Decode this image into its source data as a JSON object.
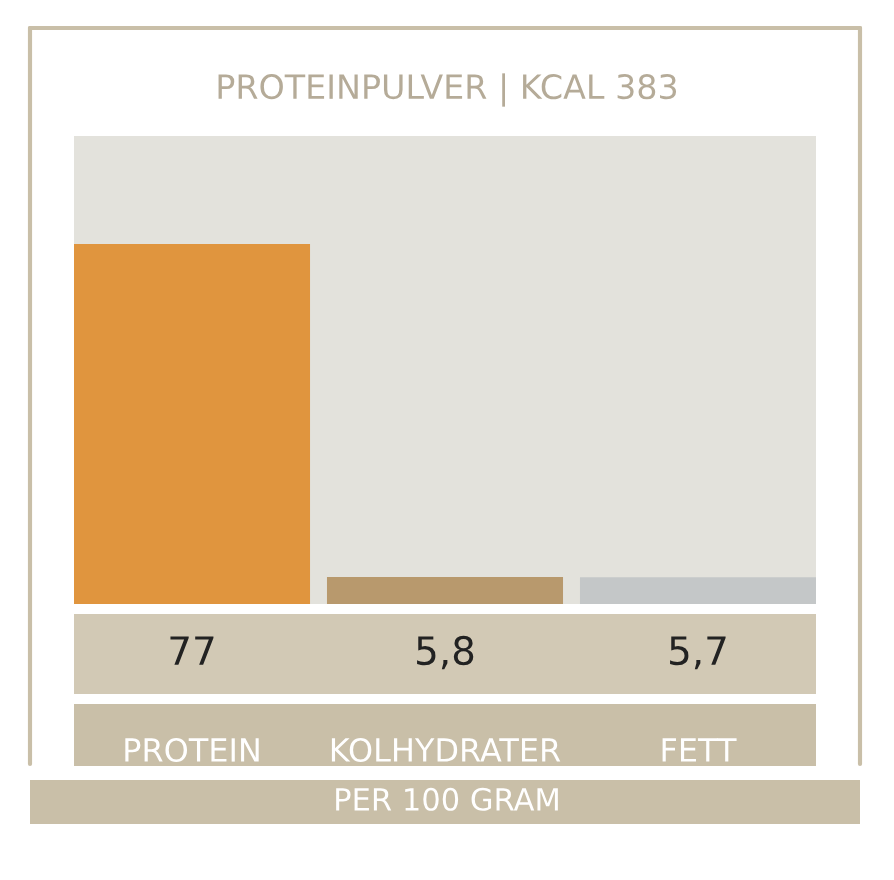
{
  "chart_data": {
    "type": "bar",
    "title": "PROTEINPULVER | KCAL 383",
    "categories": [
      "PROTEIN",
      "KOLHYDRATER",
      "FETT"
    ],
    "values": [
      77,
      5.8,
      5.7
    ],
    "colors": [
      "#e0953e",
      "#b8996d",
      "#c4c7c8"
    ],
    "value_labels": [
      "77",
      "5,8",
      "5,7"
    ],
    "tick_labels": "x",
    "grid": false,
    "annotations": [
      "PER 100 GRAM"
    ]
  }
}
